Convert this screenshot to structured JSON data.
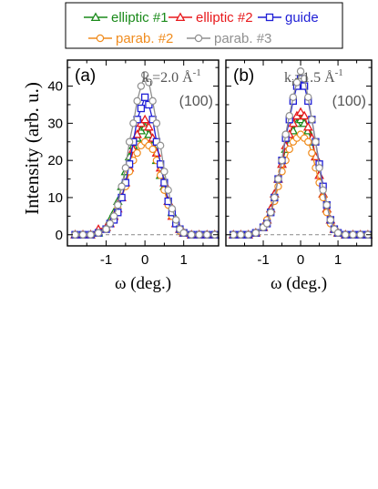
{
  "legend": [
    {
      "label": "elliptic #1",
      "color": "#1a8a1a",
      "marker": "triangle"
    },
    {
      "label": "elliptic #2",
      "color": "#e8191c",
      "marker": "triangle"
    },
    {
      "label": "guide",
      "color": "#1f1fd6",
      "marker": "square"
    },
    {
      "label": "parab. #2",
      "color": "#f08c1e",
      "marker": "circle"
    },
    {
      "label": "parab. #3",
      "color": "#909090",
      "marker": "circle"
    }
  ],
  "shared": {
    "ylabel": "Intensity (arb. u.)",
    "xlabel": "ω (deg.)",
    "xticks": [
      "-1",
      "0",
      "1"
    ],
    "yticks": [
      "0",
      "10",
      "20",
      "30",
      "40"
    ]
  },
  "panels": [
    {
      "tag": "(a)",
      "k_main": "k",
      "k_sub": "i",
      "k_value": "=2.0 Å",
      "k_sup": "-1",
      "reflection": "(100)"
    },
    {
      "tag": "(b)",
      "k_main": "k",
      "k_sub": "i",
      "k_value": "=1.5 Å",
      "k_sup": "-1",
      "reflection": "(100)"
    }
  ],
  "chart_data": [
    {
      "type": "line",
      "panel": "(a)",
      "xlabel": "ω (deg.)",
      "ylabel": "Intensity (arb. u.)",
      "xlim": [
        -2.0,
        1.9
      ],
      "ylim": [
        -3,
        47
      ],
      "x": [
        -1.8,
        -1.6,
        -1.4,
        -1.2,
        -1.0,
        -0.9,
        -0.8,
        -0.7,
        -0.6,
        -0.5,
        -0.4,
        -0.3,
        -0.2,
        -0.1,
        0.0,
        0.1,
        0.2,
        0.3,
        0.4,
        0.5,
        0.6,
        0.7,
        0.8,
        0.9,
        1.0,
        1.2,
        1.4,
        1.6,
        1.8
      ],
      "series": [
        {
          "name": "elliptic #1",
          "values": [
            0,
            0,
            0,
            0.5,
            2,
            4,
            6,
            9,
            13,
            17,
            21,
            24,
            26,
            28,
            29,
            27,
            24,
            20,
            16,
            13,
            9,
            6,
            3,
            1.5,
            0.5,
            0,
            0,
            0,
            0
          ]
        },
        {
          "name": "elliptic #2",
          "values": [
            0,
            0,
            0,
            1.5,
            2,
            3,
            5,
            7,
            10,
            14,
            18,
            23,
            27,
            30,
            31,
            29,
            26,
            22,
            18,
            14,
            9,
            5,
            3,
            1.5,
            0.5,
            0,
            0,
            0,
            0
          ]
        },
        {
          "name": "guide",
          "values": [
            0,
            0,
            0,
            0.5,
            1.5,
            3,
            4,
            6,
            10,
            14,
            19,
            25,
            31,
            34,
            37,
            35,
            31,
            25,
            19,
            14,
            9,
            6,
            3,
            1.5,
            0.5,
            0,
            0,
            0,
            0
          ]
        },
        {
          "name": "parab. #2",
          "values": [
            0,
            0,
            0,
            0.5,
            1.5,
            3,
            4,
            7,
            10,
            13,
            17,
            20,
            22,
            24,
            25,
            24,
            23,
            20,
            16,
            12,
            8,
            5,
            3,
            1,
            0.5,
            0,
            0,
            0,
            0
          ]
        },
        {
          "name": "parab. #3",
          "values": [
            0,
            0,
            0,
            0.5,
            1.5,
            3,
            5,
            8,
            13,
            18,
            25,
            30,
            36,
            40,
            43,
            41,
            36,
            30,
            24,
            17,
            12,
            7,
            4,
            1.5,
            0.5,
            0,
            0,
            0,
            0
          ]
        }
      ]
    },
    {
      "type": "line",
      "panel": "(b)",
      "xlabel": "ω (deg.)",
      "ylabel": "Intensity (arb. u.)",
      "xlim": [
        -2.0,
        1.9
      ],
      "ylim": [
        -3,
        47
      ],
      "x": [
        -1.8,
        -1.6,
        -1.4,
        -1.2,
        -1.0,
        -0.9,
        -0.8,
        -0.7,
        -0.6,
        -0.5,
        -0.4,
        -0.3,
        -0.2,
        -0.1,
        0.0,
        0.1,
        0.2,
        0.3,
        0.4,
        0.5,
        0.6,
        0.7,
        0.8,
        0.9,
        1.0,
        1.2,
        1.4,
        1.6,
        1.8
      ],
      "series": [
        {
          "name": "elliptic #1",
          "values": [
            0,
            0,
            0,
            0.5,
            2,
            4,
            7,
            11,
            15,
            19,
            23,
            26,
            28,
            30,
            31,
            30,
            28,
            25,
            21,
            16,
            11,
            7,
            4,
            1.5,
            0.5,
            0,
            0,
            0,
            0
          ]
        },
        {
          "name": "elliptic #2",
          "values": [
            0,
            0,
            0,
            0.5,
            2,
            4,
            7,
            11,
            15,
            19,
            24,
            27,
            30,
            32,
            33,
            32,
            29,
            26,
            21,
            16,
            11,
            7,
            4,
            1.5,
            0.5,
            0,
            0,
            0,
            0
          ]
        },
        {
          "name": "guide",
          "values": [
            0,
            0,
            0,
            0.5,
            2,
            3,
            6,
            10,
            15,
            20,
            26,
            31,
            36,
            40,
            42,
            40,
            36,
            31,
            25,
            19,
            13,
            8,
            4,
            1.5,
            0.5,
            0,
            0,
            0,
            0
          ]
        },
        {
          "name": "parab. #2",
          "values": [
            0,
            0,
            0,
            0.5,
            2,
            4,
            6,
            9,
            13,
            17,
            20,
            23,
            25,
            26,
            27,
            26,
            25,
            22,
            18,
            14,
            10,
            6,
            3,
            1.5,
            0.5,
            0,
            0,
            0,
            0
          ]
        },
        {
          "name": "parab. #3",
          "values": [
            0,
            0,
            0,
            0.5,
            2,
            3,
            6,
            10,
            15,
            20,
            27,
            32,
            37,
            41,
            44,
            42,
            37,
            31,
            25,
            18,
            12,
            8,
            4,
            1.5,
            0.5,
            0,
            0,
            0,
            0
          ]
        }
      ]
    }
  ]
}
